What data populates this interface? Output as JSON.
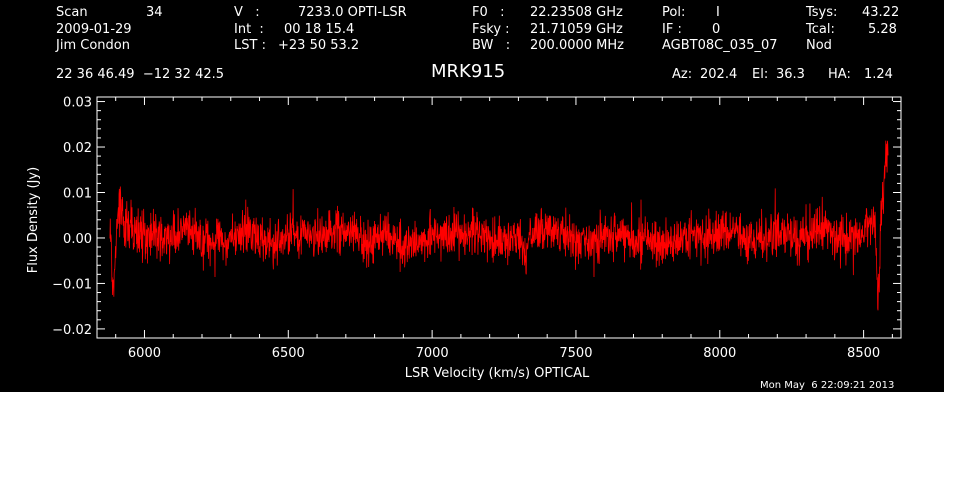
{
  "header": {
    "row1": {
      "scan_label": "Scan",
      "scan_value": "34",
      "v_label": "V   :",
      "v_value": "7233.0 OPTI-LSR",
      "f0_label": "F0   :",
      "f0_value": "22.23508 GHz",
      "pol_label": "Pol:",
      "pol_value": "I",
      "tsys_label": "Tsys:",
      "tsys_value": "43.22"
    },
    "row2": {
      "date": "2009-01-29",
      "int_label": "Int  :",
      "int_value": "00 18 15.4",
      "fsky_label": "Fsky :",
      "fsky_value": "21.71059 GHz",
      "if_label": "IF :",
      "if_value": "0",
      "tcal_label": "Tcal:",
      "tcal_value": "5.28"
    },
    "row3": {
      "observer": "Jim Condon",
      "lst_label": "LST :",
      "lst_value": "+23 50 53.2",
      "bw_label": "BW   :",
      "bw_value": "200.0000 MHz",
      "project": "AGBT08C_035_07",
      "proc": "Nod"
    },
    "row4": {
      "coords": "22 36 46.49  −12 32 42.5",
      "source": "MRK915",
      "az_label": "Az:",
      "az_value": "202.4",
      "el_label": "El:",
      "el_value": "36.3",
      "ha_label": "HA:",
      "ha_value": "1.24"
    }
  },
  "footer": {
    "timestamp": "Mon May  6 22:09:21 2013"
  },
  "colors": {
    "background": "#000000",
    "axes": "#ffffff",
    "trace": "#ff0000"
  },
  "chart_data": {
    "type": "line",
    "title": "MRK915",
    "xlabel": "LSR Velocity (km/s) OPTICAL",
    "ylabel": "Flux Density (Jy)",
    "xlim": [
      5835,
      8630
    ],
    "ylim": [
      -0.022,
      0.031
    ],
    "x_ticks": [
      6000,
      6500,
      7000,
      7500,
      8000,
      8500
    ],
    "x_tick_labels": [
      "6000",
      "6500",
      "7000",
      "7500",
      "8000",
      "8500"
    ],
    "y_ticks": [
      -0.02,
      -0.01,
      0.0,
      0.01,
      0.02,
      0.03
    ],
    "y_tick_labels": [
      "−0.02",
      "−0.01",
      "0.00",
      "0.01",
      "0.02",
      "0.03"
    ],
    "grid": false,
    "legend": "none",
    "series": [
      {
        "color": "#ff0000",
        "x": [
          5880,
          5885,
          5890,
          5895,
          5900,
          5905,
          5910,
          5915,
          5920,
          5925,
          5930,
          5940,
          5960,
          5990,
          6030,
          6080,
          6130,
          6200,
          6280,
          6360,
          6440,
          6520,
          6600,
          6680,
          6760,
          6840,
          6920,
          7000,
          7080,
          7160,
          7240,
          7300,
          7330,
          7340,
          7400,
          7480,
          7560,
          7640,
          7720,
          7800,
          7880,
          7960,
          8040,
          8120,
          8200,
          8280,
          8360,
          8440,
          8500,
          8520,
          8540,
          8550,
          8560,
          8565,
          8570,
          8575,
          8580,
          8585
        ],
        "y": [
          0.001,
          -0.003,
          -0.012,
          -0.008,
          -0.003,
          0.002,
          0.006,
          0.01,
          0.005,
          0.003,
          0.001,
          0.003,
          0.001,
          0.0,
          0.001,
          -0.001,
          0.002,
          0.0,
          -0.001,
          0.002,
          -0.002,
          0.001,
          0.0,
          0.002,
          -0.001,
          0.001,
          -0.002,
          0.001,
          0.0,
          0.002,
          -0.001,
          0.0,
          -0.004,
          0.001,
          0.002,
          0.0,
          -0.001,
          0.002,
          0.0,
          -0.002,
          0.001,
          0.0,
          0.002,
          -0.001,
          0.001,
          0.0,
          0.002,
          -0.001,
          0.001,
          0.003,
          0.004,
          -0.014,
          0.005,
          0.008,
          0.012,
          0.016,
          0.019,
          0.021
        ]
      }
    ]
  }
}
